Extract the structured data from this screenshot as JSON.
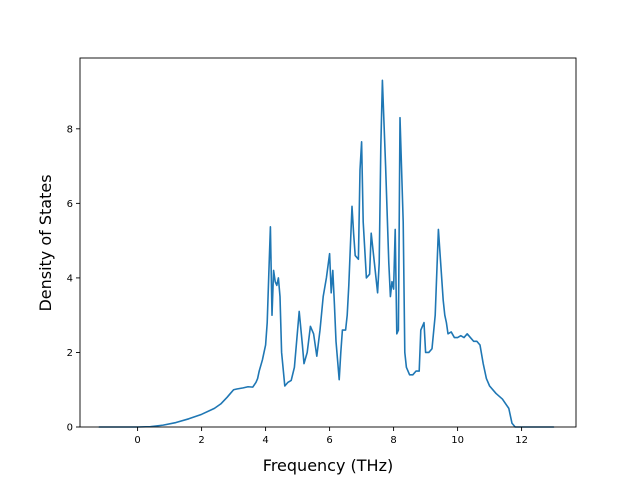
{
  "chart_data": {
    "type": "line",
    "title": "",
    "xlabel": "Frequency (THz)",
    "ylabel": "Density of States",
    "xlim": [
      -1.8,
      13.7
    ],
    "ylim": [
      0,
      9.9
    ],
    "xticks": [
      0,
      2,
      4,
      6,
      8,
      10,
      12
    ],
    "yticks": [
      0,
      2,
      4,
      6,
      8
    ],
    "grid": false,
    "legend": "none",
    "series": [
      {
        "color": "#1f77b4",
        "x": [
          -1.2,
          -0.6,
          0.0,
          0.4,
          0.8,
          1.2,
          1.6,
          2.0,
          2.4,
          2.6,
          2.8,
          2.9,
          3.0,
          3.1,
          3.3,
          3.45,
          3.6,
          3.7,
          3.75,
          3.8,
          3.9,
          3.95,
          4.0,
          4.05,
          4.1,
          4.15,
          4.2,
          4.25,
          4.3,
          4.35,
          4.4,
          4.45,
          4.5,
          4.6,
          4.7,
          4.8,
          4.9,
          5.0,
          5.05,
          5.15,
          5.2,
          5.3,
          5.4,
          5.5,
          5.6,
          5.7,
          5.8,
          5.9,
          6.0,
          6.05,
          6.1,
          6.15,
          6.2,
          6.3,
          6.35,
          6.4,
          6.5,
          6.55,
          6.6,
          6.7,
          6.75,
          6.8,
          6.9,
          6.95,
          7.0,
          7.05,
          7.15,
          7.25,
          7.3,
          7.4,
          7.5,
          7.55,
          7.6,
          7.65,
          7.75,
          7.85,
          7.9,
          7.95,
          8.0,
          8.05,
          8.1,
          8.15,
          8.2,
          8.3,
          8.35,
          8.4,
          8.5,
          8.55,
          8.6,
          8.7,
          8.8,
          8.85,
          8.95,
          9.0,
          9.1,
          9.2,
          9.3,
          9.4,
          9.55,
          9.6,
          9.65,
          9.7,
          9.8,
          9.9,
          10.0,
          10.1,
          10.2,
          10.3,
          10.4,
          10.5,
          10.6,
          10.7,
          10.8,
          10.9,
          11.0,
          11.2,
          11.4,
          11.6,
          11.7,
          11.8,
          11.9,
          12.2,
          12.6,
          13.0
        ],
        "y": [
          0,
          0,
          0,
          0.01,
          0.05,
          0.12,
          0.22,
          0.34,
          0.5,
          0.62,
          0.8,
          0.9,
          1.0,
          1.02,
          1.05,
          1.08,
          1.07,
          1.2,
          1.3,
          1.5,
          1.8,
          2.0,
          2.2,
          2.8,
          4.1,
          5.37,
          3.0,
          4.2,
          3.9,
          3.8,
          4.0,
          3.5,
          2.0,
          1.1,
          1.2,
          1.25,
          1.6,
          2.6,
          3.1,
          2.2,
          1.7,
          2.0,
          2.7,
          2.5,
          1.9,
          2.6,
          3.5,
          4.0,
          4.65,
          3.6,
          4.2,
          3.3,
          2.3,
          1.27,
          2.0,
          2.6,
          2.6,
          3.0,
          3.8,
          5.92,
          5.2,
          4.6,
          4.5,
          6.9,
          7.65,
          5.5,
          4.0,
          4.1,
          5.2,
          4.4,
          3.6,
          4.4,
          7.5,
          9.3,
          7.0,
          4.4,
          3.5,
          3.9,
          3.7,
          5.3,
          2.5,
          2.6,
          8.3,
          5.5,
          2.0,
          1.6,
          1.4,
          1.4,
          1.4,
          1.5,
          1.5,
          2.6,
          2.8,
          2.0,
          2.0,
          2.1,
          3.0,
          5.3,
          3.4,
          3.0,
          2.8,
          2.5,
          2.55,
          2.4,
          2.4,
          2.45,
          2.4,
          2.5,
          2.4,
          2.3,
          2.3,
          2.2,
          1.7,
          1.3,
          1.1,
          0.9,
          0.75,
          0.5,
          0.1,
          0.0,
          0,
          0,
          0,
          0
        ]
      }
    ]
  }
}
